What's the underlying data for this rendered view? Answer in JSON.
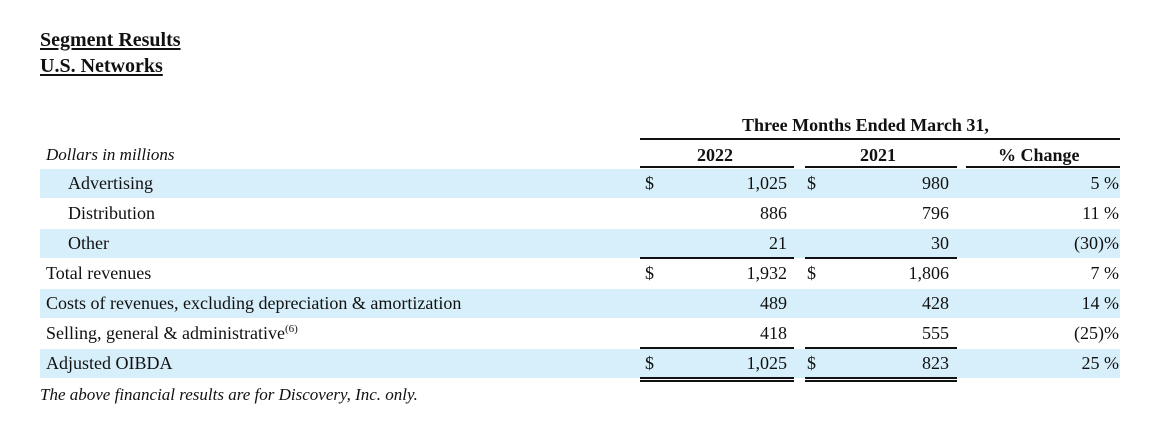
{
  "header": {
    "title": "Segment Results",
    "subtitle": "U.S. Networks"
  },
  "table": {
    "period_header": "Three Months Ended March 31,",
    "units_label": "Dollars in millions",
    "columns": [
      "2022",
      "2021",
      "% Change"
    ],
    "currency_symbol": "$",
    "rows": [
      {
        "label": "Advertising",
        "v2022": "1,025",
        "v2021": "980",
        "change": "5 %"
      },
      {
        "label": "Distribution",
        "v2022": "886",
        "v2021": "796",
        "change": "11 %"
      },
      {
        "label": "Other",
        "v2022": "21",
        "v2021": "30",
        "change": "(30)%"
      },
      {
        "label": "Total revenues",
        "v2022": "1,932",
        "v2021": "1,806",
        "change": "7 %"
      },
      {
        "label": "Costs of revenues, excluding depreciation & amortization",
        "v2022": "489",
        "v2021": "428",
        "change": "14 %"
      },
      {
        "label": "Selling, general & administrative",
        "footnote": "(6)",
        "v2022": "418",
        "v2021": "555",
        "change": "(25)%"
      },
      {
        "label": "Adjusted OIBDA",
        "v2022": "1,025",
        "v2021": "823",
        "change": "25 %"
      }
    ]
  },
  "footnote_text": "The above financial results are for Discovery, Inc. only.",
  "colors": {
    "band": "#d7effa",
    "text": "#111111"
  }
}
